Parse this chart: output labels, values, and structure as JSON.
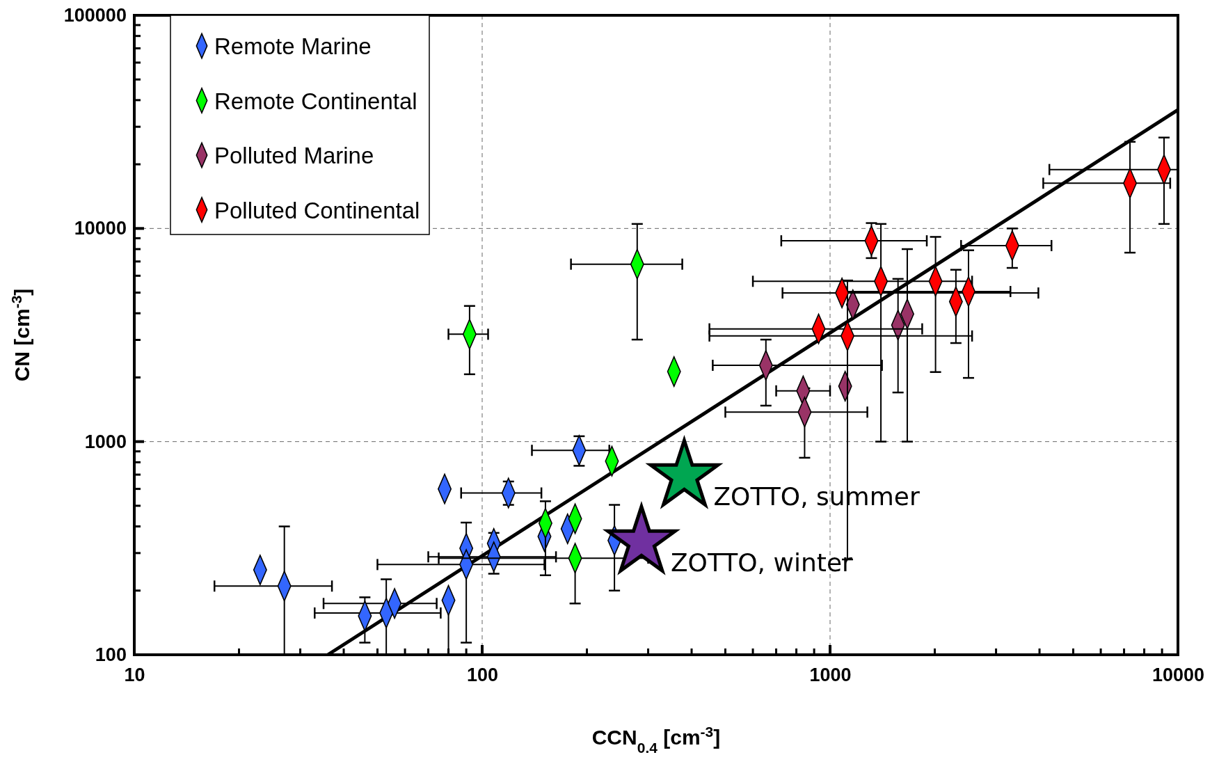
{
  "chart_data": {
    "type": "scatter",
    "xlabel": "CCN$_{0.4}$ [cm$^{-3}$]",
    "ylabel": "CN [cm$^{-3}$]",
    "log": "xy",
    "grid": true,
    "legend": "top left",
    "marker": "diamond",
    "xlim": [
      10,
      10000
    ],
    "ylim": [
      100,
      100000
    ],
    "xticks": [
      10,
      {
        "value": 20,
        "label": null
      },
      {
        "value": 30,
        "label": null
      },
      {
        "value": 40,
        "label": null
      },
      {
        "value": 50,
        "label": null
      },
      {
        "value": 60,
        "label": null
      },
      {
        "value": 70,
        "label": null
      },
      {
        "value": 80,
        "label": null
      },
      {
        "value": 90,
        "label": null
      },
      100,
      {
        "value": 200,
        "label": null
      },
      {
        "value": 300,
        "label": null
      },
      {
        "value": 400,
        "label": null
      },
      {
        "value": 500,
        "label": null
      },
      {
        "value": 600,
        "label": null
      },
      {
        "value": 700,
        "label": null
      },
      {
        "value": 800,
        "label": null
      },
      {
        "value": 900,
        "label": null
      },
      1000,
      {
        "value": 2000,
        "label": null
      },
      {
        "value": 3000,
        "label": null
      },
      {
        "value": 4000,
        "label": null
      },
      {
        "value": 5000,
        "label": null
      },
      {
        "value": 6000,
        "label": null
      },
      {
        "value": 7000,
        "label": null
      },
      {
        "value": 8000,
        "label": null
      },
      {
        "value": 9000,
        "label": null
      },
      10000
    ],
    "yticks": [
      100,
      {
        "value": 200,
        "label": null
      },
      {
        "value": 300,
        "label": null
      },
      {
        "value": 400,
        "label": null
      },
      {
        "value": 500,
        "label": null
      },
      {
        "value": 600,
        "label": null
      },
      {
        "value": 700,
        "label": null
      },
      {
        "value": 800,
        "label": null
      },
      {
        "value": 900,
        "label": null
      },
      1000,
      {
        "value": 2000,
        "label": null
      },
      {
        "value": 3000,
        "label": null
      },
      {
        "value": 4000,
        "label": null
      },
      {
        "value": 5000,
        "label": null
      },
      {
        "value": 6000,
        "label": null
      },
      {
        "value": 7000,
        "label": null
      },
      {
        "value": 8000,
        "label": null
      },
      {
        "value": 9000,
        "label": null
      },
      10000,
      {
        "value": 20000,
        "label": null
      },
      {
        "value": 30000,
        "label": null
      },
      {
        "value": 40000,
        "label": null
      },
      {
        "value": 50000,
        "label": null
      },
      {
        "value": 60000,
        "label": null
      },
      {
        "value": 70000,
        "label": null
      },
      {
        "value": 80000,
        "label": null
      },
      {
        "value": 90000,
        "label": null
      },
      100000
    ],
    "series": [
      {
        "type": "line",
        "color": "#000000",
        "x": [
          36,
          10000
        ],
        "values": [
          100,
          36000
        ],
        "marker": "none"
      },
      {
        "name": "Remote Marine",
        "color": "#3366ff",
        "x": [
          23,
          27,
          46,
          53,
          56,
          80,
          78,
          90,
          90,
          108,
          108,
          119,
          190,
          151,
          176,
          240
        ],
        "values": [
          250,
          210,
          152,
          157,
          174,
          180,
          600,
          316,
          265,
          333,
          288,
          574,
          910,
          359,
          390,
          344
        ],
        "errors": [
          null,
          [
            100,
            400
          ],
          [
            114,
            186
          ],
          [
            100,
            226
          ],
          null,
          [
            100,
            180
          ],
          null,
          [
            114,
            417
          ],
          null,
          null,
          [
            240,
            373
          ],
          [
            505,
            650
          ],
          [
            770,
            1060
          ],
          null,
          null,
          [
            200,
            505
          ]
        ],
        "xerrors": [
          null,
          [
            17,
            37
          ],
          null,
          [
            33,
            76
          ],
          [
            35,
            74
          ],
          null,
          null,
          null,
          [
            50,
            151
          ],
          null,
          [
            70,
            163
          ],
          [
            87,
            148
          ],
          [
            139,
            232
          ],
          null,
          null,
          null
        ]
      },
      {
        "name": "Remote Continental",
        "color": "#00ff00",
        "x": [
          92,
          279,
          356,
          236,
          152,
          185,
          185
        ],
        "values": [
          3190,
          6800,
          2130,
          810,
          414,
          435,
          284
        ],
        "errors": [
          [
            2070,
            4330
          ],
          [
            3010,
            10500
          ],
          null,
          null,
          [
            236,
            525
          ],
          null,
          [
            174,
            284
          ]
        ],
        "xerrors": [
          [
            80,
            104
          ],
          [
            180,
            376
          ],
          null,
          null,
          null,
          null,
          [
            75,
            300
          ]
        ]
      },
      {
        "name": "Polluted Marine",
        "color": "#993366",
        "x": [
          654,
          837,
          845,
          1105,
          1163,
          1568,
          1667
        ],
        "values": [
          2280,
          1730,
          1375,
          1820,
          4390,
          3520,
          3970
        ],
        "errors": [
          [
            1475,
            3010
          ],
          null,
          [
            840,
            1780
          ],
          null,
          null,
          [
            1700,
            5800
          ],
          [
            1000,
            8000
          ]
        ],
        "xerrors": [
          [
            460,
            1410
          ],
          [
            700,
            1000
          ],
          [
            500,
            1280
          ],
          null,
          null,
          null,
          null
        ]
      },
      {
        "name": "Polluted Continental",
        "color": "#ff0000",
        "x": [
          927,
          1122,
          1082,
          1315,
          1400,
          2010,
          2300,
          2500,
          3340,
          7280,
          9120
        ],
        "values": [
          3380,
          3130,
          4980,
          8750,
          5650,
          5650,
          4540,
          5060,
          8310,
          16300,
          18900
        ],
        "errors": [
          null,
          [
            280,
            5700
          ],
          null,
          [
            7260,
            10600
          ],
          [
            1000,
            10500
          ],
          [
            2120,
            9130
          ],
          [
            2900,
            6400
          ],
          [
            1990,
            7900
          ],
          [
            6530,
            10000
          ],
          [
            7700,
            25500
          ],
          [
            10500,
            26700
          ]
        ],
        "xerrors": [
          [
            450,
            1840
          ],
          [
            450,
            2560
          ],
          [
            730,
            3970
          ],
          [
            724,
            1897
          ],
          [
            600,
            2560
          ],
          null,
          null,
          [
            1120,
            3300
          ],
          [
            2380,
            4330
          ],
          [
            4100,
            9500
          ],
          [
            4270,
            10000
          ]
        ]
      },
      {
        "color": "#00a651",
        "x": [
          381
        ],
        "values": [
          690
        ],
        "marker": "star"
      },
      {
        "color": "#7030a0",
        "x": [
          287
        ],
        "values": [
          338
        ],
        "marker": "star"
      }
    ],
    "annotations": [
      "ZOTTO, summer",
      "ZOTTO, winter"
    ]
  }
}
